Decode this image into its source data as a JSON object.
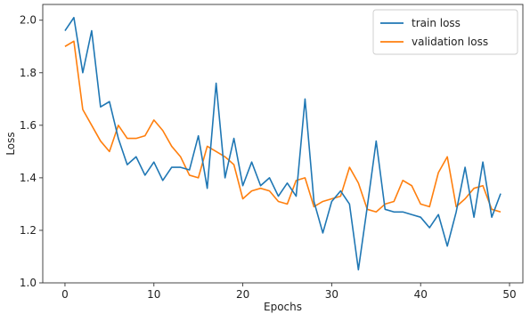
{
  "chart_data": {
    "type": "line",
    "title": "",
    "xlabel": "Epochs",
    "ylabel": "Loss",
    "xlim": [
      -2.5,
      51.5
    ],
    "ylim": [
      1.0,
      2.06
    ],
    "xticks": [
      0,
      10,
      20,
      30,
      40,
      50
    ],
    "yticks": [
      1.0,
      1.2,
      1.4,
      1.6,
      1.8,
      2.0
    ],
    "xtick_labels": [
      "0",
      "10",
      "20",
      "30",
      "40",
      "50"
    ],
    "ytick_labels": [
      "1.0",
      "1.2",
      "1.4",
      "1.6",
      "1.8",
      "2.0"
    ],
    "legend_position": "top-right",
    "grid": false,
    "x": [
      0,
      1,
      2,
      3,
      4,
      5,
      6,
      7,
      8,
      9,
      10,
      11,
      12,
      13,
      14,
      15,
      16,
      17,
      18,
      19,
      20,
      21,
      22,
      23,
      24,
      25,
      26,
      27,
      28,
      29,
      30,
      31,
      32,
      33,
      34,
      35,
      36,
      37,
      38,
      39,
      40,
      41,
      42,
      43,
      44,
      45,
      46,
      47,
      48,
      49
    ],
    "series": [
      {
        "name": "train loss",
        "color": "#1f77b4",
        "values": [
          1.96,
          2.01,
          1.8,
          1.96,
          1.67,
          1.69,
          1.55,
          1.45,
          1.48,
          1.41,
          1.46,
          1.39,
          1.44,
          1.44,
          1.43,
          1.56,
          1.36,
          1.76,
          1.4,
          1.55,
          1.37,
          1.46,
          1.37,
          1.4,
          1.33,
          1.38,
          1.33,
          1.7,
          1.31,
          1.19,
          1.31,
          1.35,
          1.3,
          1.05,
          1.29,
          1.54,
          1.28,
          1.27,
          1.27,
          1.26,
          1.25,
          1.21,
          1.26,
          1.14,
          1.27,
          1.44,
          1.25,
          1.46,
          1.25,
          1.34
        ]
      },
      {
        "name": "validation loss",
        "color": "#ff7f0e",
        "values": [
          1.9,
          1.92,
          1.66,
          1.6,
          1.54,
          1.5,
          1.6,
          1.55,
          1.55,
          1.56,
          1.62,
          1.58,
          1.52,
          1.48,
          1.41,
          1.4,
          1.52,
          1.5,
          1.48,
          1.45,
          1.32,
          1.35,
          1.36,
          1.35,
          1.31,
          1.3,
          1.39,
          1.4,
          1.29,
          1.31,
          1.32,
          1.33,
          1.44,
          1.38,
          1.28,
          1.27,
          1.3,
          1.31,
          1.39,
          1.37,
          1.3,
          1.29,
          1.42,
          1.48,
          1.29,
          1.32,
          1.36,
          1.37,
          1.28,
          1.27
        ]
      }
    ]
  }
}
